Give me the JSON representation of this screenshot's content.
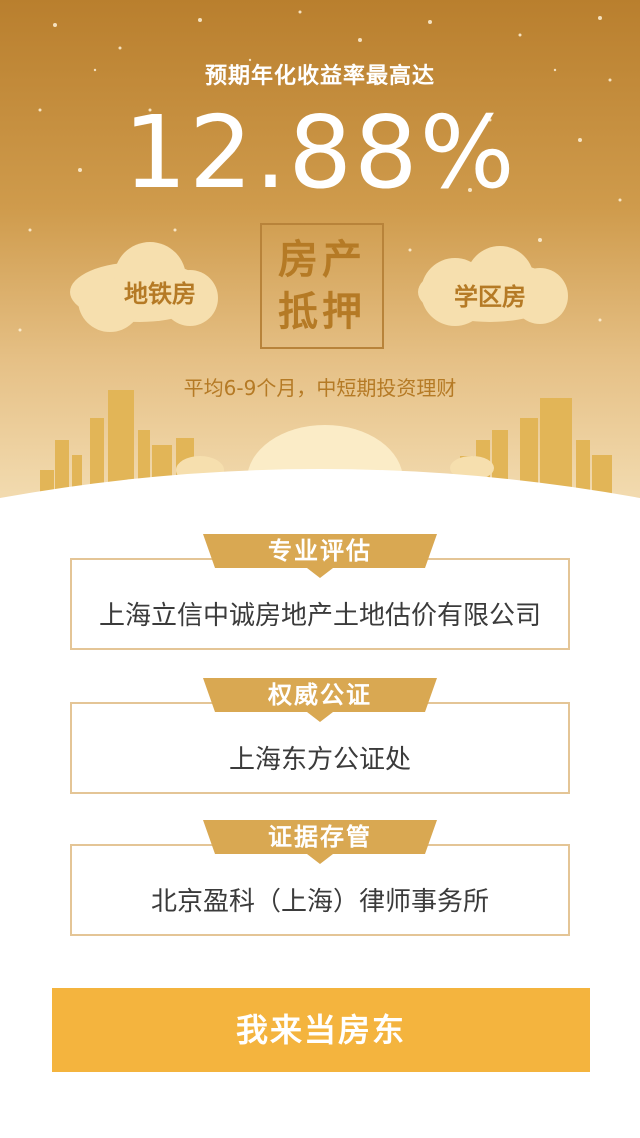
{
  "hero": {
    "subtitle": "预期年化收益率最高达",
    "rate": "12.88%",
    "left_cloud_label": "地铁房",
    "right_cloud_label": "学区房",
    "stamp_line1": "房产",
    "stamp_line2": "抵押",
    "tagline": "平均6-9个月，中短期投资理财"
  },
  "sections": [
    {
      "ribbon": "专业评估",
      "text": "上海立信中诚房地产土地估价有限公司"
    },
    {
      "ribbon": "权威公证",
      "text": "上海东方公证处"
    },
    {
      "ribbon": "证据存管",
      "text": "北京盈科（上海）律师事务所"
    }
  ],
  "cta": {
    "label": "我来当房东"
  },
  "colors": {
    "gold": "#b57a25",
    "card_border": "#e4c596",
    "ribbon": "#d9a852",
    "button": "#f4b43e"
  }
}
